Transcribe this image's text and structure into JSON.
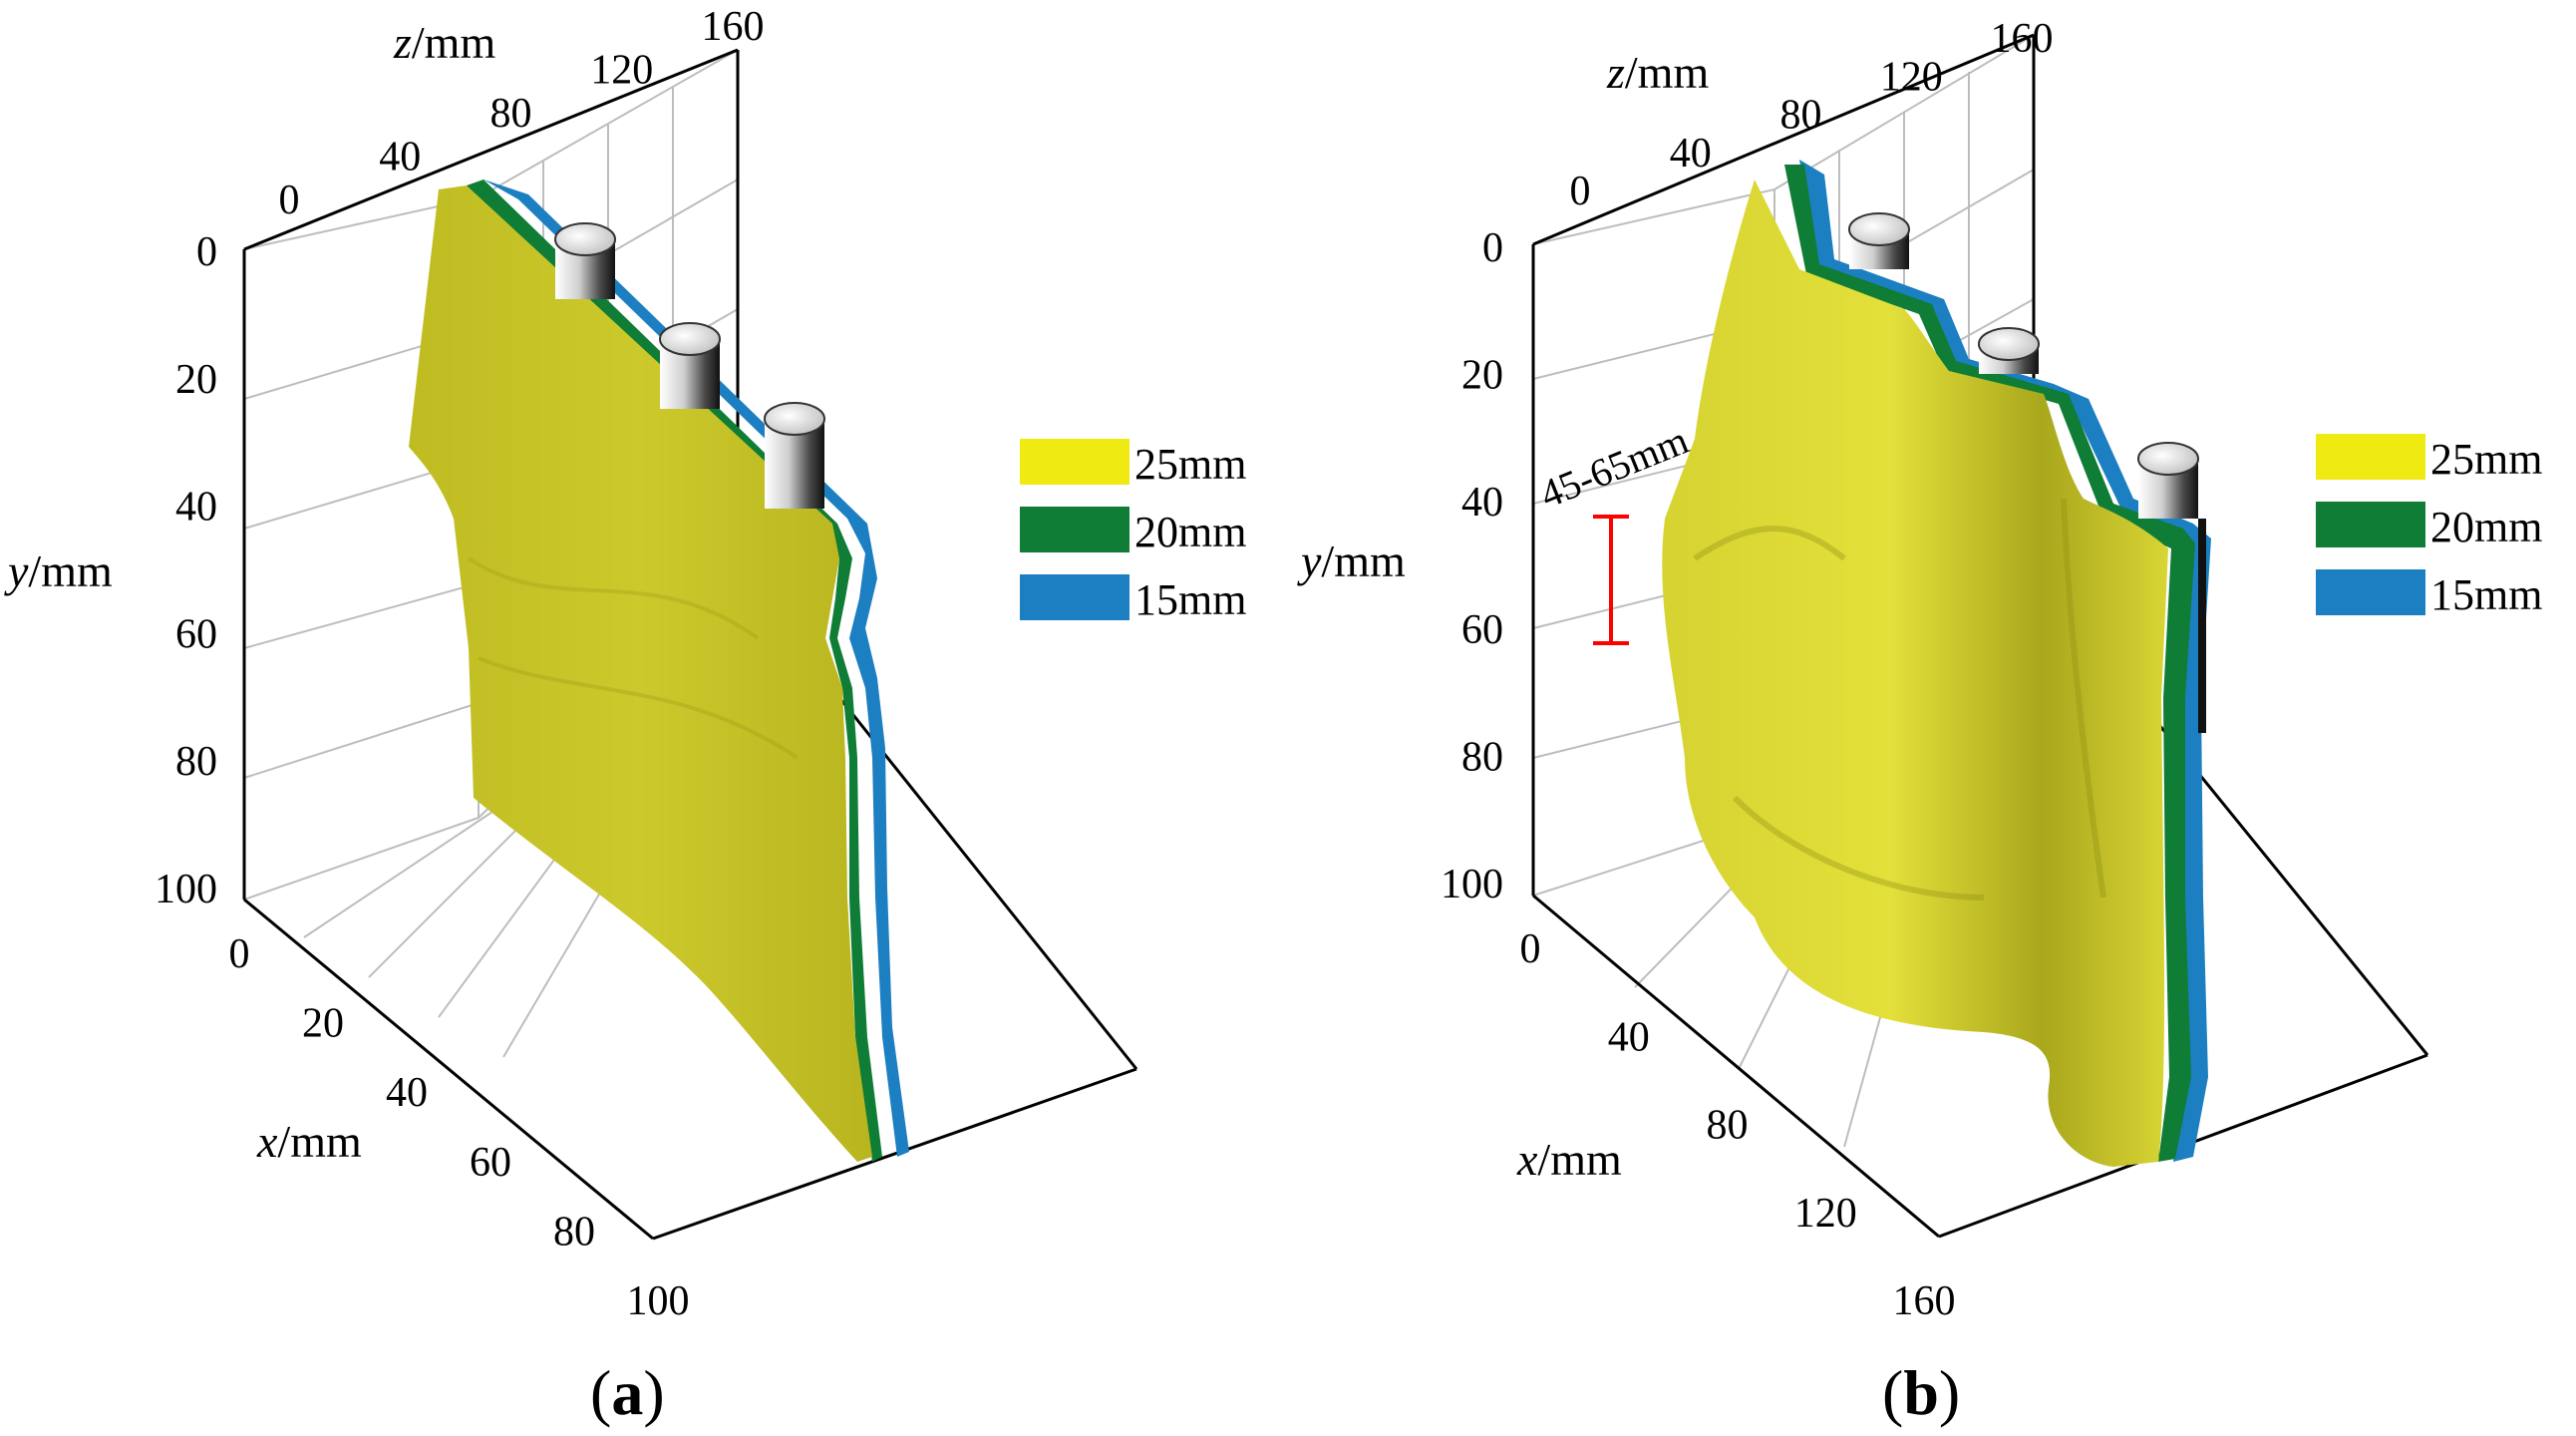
{
  "chart_data": [
    {
      "type": "3d-surface",
      "panel_label": {
        "open": "(",
        "letter": "a",
        "close": ")"
      },
      "axes": {
        "z": {
          "label_var": "z",
          "label_unit": "/mm",
          "ticks": [
            "0",
            "40",
            "80",
            "120",
            "160"
          ],
          "range": [
            0,
            160
          ]
        },
        "y": {
          "label_var": "y",
          "label_unit": "/mm",
          "ticks": [
            "0",
            "20",
            "40",
            "60",
            "80",
            "100"
          ],
          "range": [
            0,
            100
          ]
        },
        "x": {
          "label_var": "x",
          "label_unit": "/mm",
          "ticks": [
            "0",
            "20",
            "40",
            "60",
            "80",
            "100"
          ],
          "range": [
            0,
            100
          ]
        }
      },
      "grid": true,
      "series": [
        {
          "name": "25mm",
          "color": "#EFEB12"
        },
        {
          "name": "20mm",
          "color": "#0F7D35"
        },
        {
          "name": "15mm",
          "color": "#1C7FC1"
        }
      ],
      "surface_color": "#C9C627",
      "cylinders": 3,
      "legend": "right"
    },
    {
      "type": "3d-surface",
      "panel_label": {
        "open": "(",
        "letter": "b",
        "close": ")"
      },
      "axes": {
        "z": {
          "label_var": "z",
          "label_unit": "/mm",
          "ticks": [
            "0",
            "40",
            "80",
            "120",
            "160"
          ],
          "range": [
            0,
            160
          ]
        },
        "y": {
          "label_var": "y",
          "label_unit": "/mm",
          "ticks": [
            "0",
            "20",
            "40",
            "60",
            "80",
            "100"
          ],
          "range": [
            0,
            100
          ]
        },
        "x": {
          "label_var": "x",
          "label_unit": "/mm",
          "ticks": [
            "0",
            "40",
            "80",
            "120",
            "160"
          ],
          "range": [
            0,
            160
          ]
        }
      },
      "grid": true,
      "series": [
        {
          "name": "25mm",
          "color": "#EFEB12"
        },
        {
          "name": "20mm",
          "color": "#0F7D35"
        },
        {
          "name": "15mm",
          "color": "#1C7FC1"
        }
      ],
      "surface_color": "#C9C627",
      "cylinders": 3,
      "legend": "right",
      "annotation": {
        "text": "45-65mm",
        "color": "#FF0000",
        "y_range": [
          45,
          65
        ]
      }
    }
  ]
}
